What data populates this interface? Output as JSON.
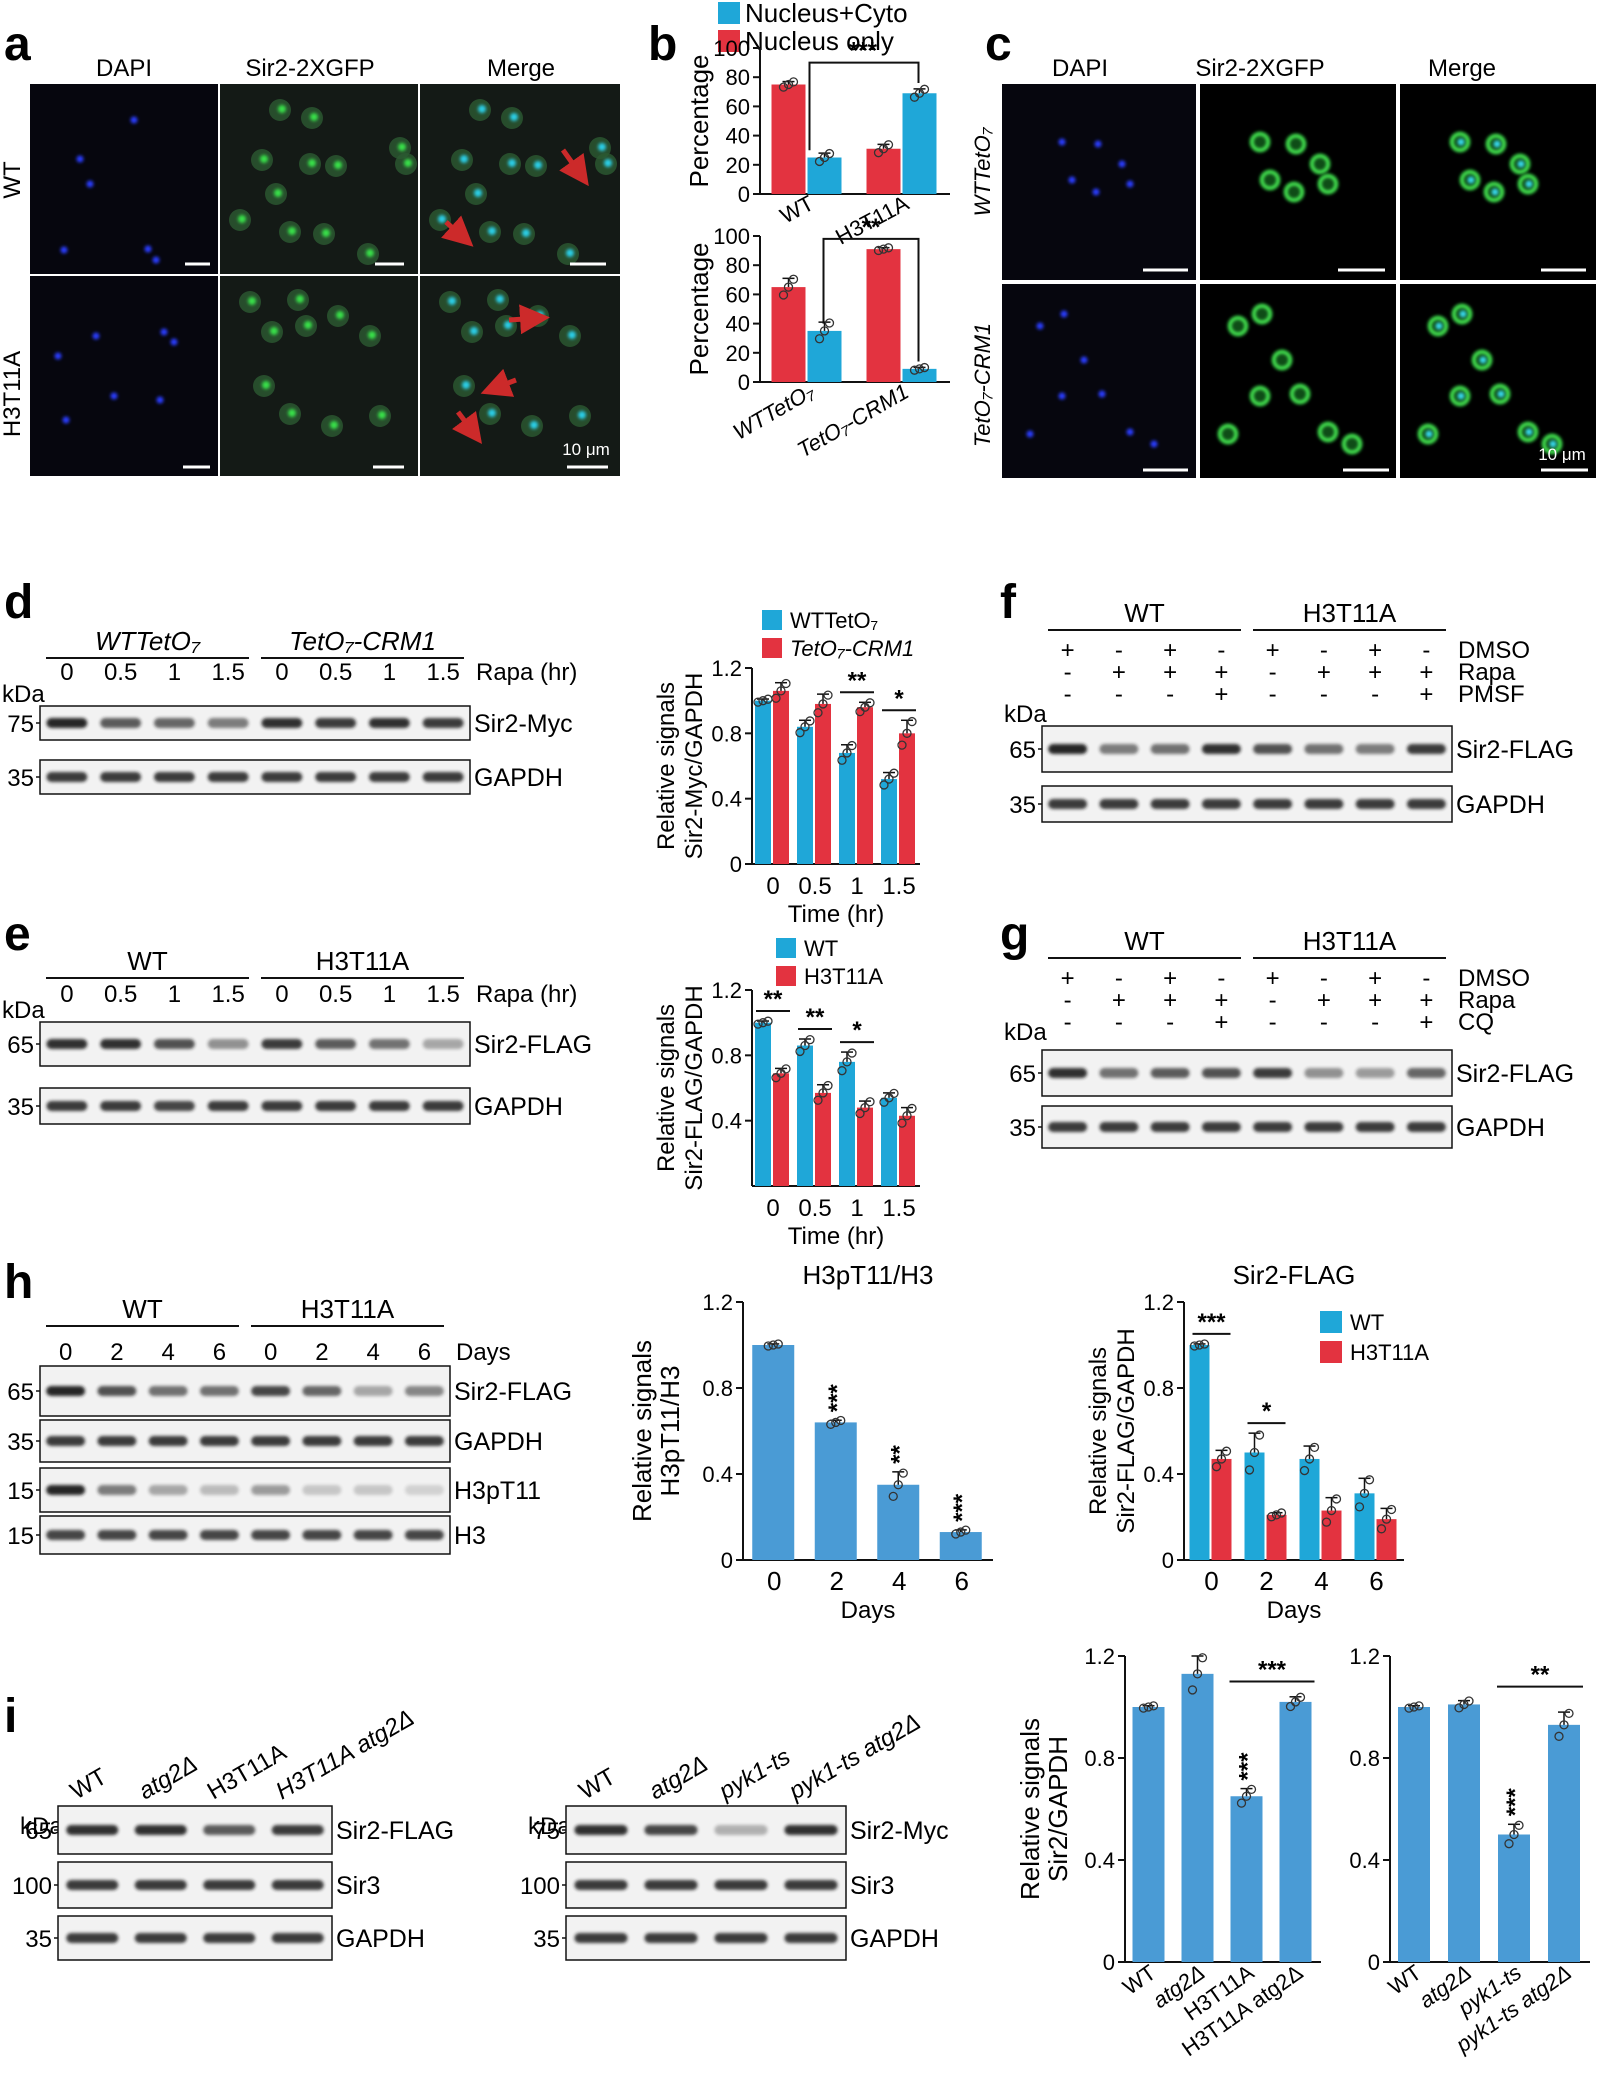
{
  "colors": {
    "blue": "#1fa7d8",
    "red": "#e33340",
    "lightblue": "#4a9bd5",
    "arrow": "#cc2a2a",
    "blot_bg": "#f2f2f2",
    "band": "#1a1a1a"
  },
  "panels": {
    "a": {
      "letter": "a",
      "cols": [
        "DAPI",
        "Sir2-2XGFP",
        "Merge"
      ],
      "rows": [
        "WT",
        "H3T11A"
      ],
      "scale": "10 μm"
    },
    "c": {
      "letter": "c",
      "cols": [
        "DAPI",
        "Sir2-2XGFP",
        "Merge"
      ],
      "rows": [
        "WTTetO₇",
        "TetO₇-CRM1"
      ],
      "scale": "10 μm"
    },
    "b": {
      "letter": "b"
    },
    "d": {
      "letter": "d",
      "groups": [
        "WTTetO₇",
        "TetO₇-CRM1"
      ],
      "lanes": [
        "0",
        "0.5",
        "1",
        "1.5",
        "0",
        "0.5",
        "1",
        "1.5"
      ],
      "lane_title": "Rapa (hr)",
      "kda_label": "kDa",
      "strips": [
        {
          "kda": "75",
          "label": "Sir2-Myc"
        },
        {
          "kda": "35",
          "label": "GAPDH"
        }
      ]
    },
    "e": {
      "letter": "e",
      "groups": [
        "WT",
        "H3T11A"
      ],
      "lanes": [
        "0",
        "0.5",
        "1",
        "1.5",
        "0",
        "0.5",
        "1",
        "1.5"
      ],
      "lane_title": "Rapa (hr)",
      "kda_label": "kDa",
      "strips": [
        {
          "kda": "65",
          "label": "Sir2-FLAG"
        },
        {
          "kda": "35",
          "label": "GAPDH"
        }
      ]
    },
    "f": {
      "letter": "f",
      "groups": [
        "WT",
        "H3T11A"
      ],
      "treatments": [
        {
          "name": "DMSO",
          "signs": [
            "+",
            "-",
            "+",
            "-",
            "+",
            "-",
            "+",
            "-"
          ]
        },
        {
          "name": "Rapa",
          "signs": [
            "-",
            "+",
            "+",
            "+",
            "-",
            "+",
            "+",
            "+"
          ]
        },
        {
          "name": "PMSF",
          "signs": [
            "-",
            "-",
            "-",
            "+",
            "-",
            "-",
            "-",
            "+"
          ]
        }
      ],
      "kda_label": "kDa",
      "strips": [
        {
          "kda": "65",
          "label": "Sir2-FLAG"
        },
        {
          "kda": "35",
          "label": "GAPDH"
        }
      ]
    },
    "g": {
      "letter": "g",
      "groups": [
        "WT",
        "H3T11A"
      ],
      "treatments": [
        {
          "name": "DMSO",
          "signs": [
            "+",
            "-",
            "+",
            "-",
            "+",
            "-",
            "+",
            "-"
          ]
        },
        {
          "name": "Rapa",
          "signs": [
            "-",
            "+",
            "+",
            "+",
            "-",
            "+",
            "+",
            "+"
          ]
        },
        {
          "name": "CQ",
          "signs": [
            "-",
            "-",
            "-",
            "+",
            "-",
            "-",
            "-",
            "+"
          ]
        }
      ],
      "kda_label": "kDa",
      "strips": [
        {
          "kda": "65",
          "label": "Sir2-FLAG"
        },
        {
          "kda": "35",
          "label": "GAPDH"
        }
      ]
    },
    "h": {
      "letter": "h",
      "groups": [
        "WT",
        "H3T11A"
      ],
      "lanes": [
        "0",
        "2",
        "4",
        "6",
        "0",
        "2",
        "4",
        "6"
      ],
      "lane_title": "Days",
      "strips": [
        {
          "kda": "65",
          "label": "Sir2-FLAG"
        },
        {
          "kda": "35",
          "label": "GAPDH"
        },
        {
          "kda": "15",
          "label": "H3pT11"
        },
        {
          "kda": "15",
          "label": "H3"
        }
      ]
    },
    "i": {
      "letter": "i",
      "blot1": {
        "lanes": [
          "WT",
          "atg2Δ",
          "H3T11A",
          "H3T11A atg2Δ"
        ],
        "kda_label": "kDa",
        "strips": [
          {
            "kda": "65",
            "label": "Sir2-FLAG"
          },
          {
            "kda": "100",
            "label": "Sir3"
          },
          {
            "kda": "35",
            "label": "GAPDH"
          }
        ]
      },
      "blot2": {
        "lanes": [
          "WT",
          "atg2Δ",
          "pyk1-ts",
          "pyk1-ts atg2Δ"
        ],
        "kda_label": "kDa",
        "strips": [
          {
            "kda": "75",
            "label": "Sir2-Myc"
          },
          {
            "kda": "100",
            "label": "Sir3"
          },
          {
            "kda": "35",
            "label": "GAPDH"
          }
        ]
      }
    }
  },
  "chart_data": [
    {
      "panel": "b-top",
      "type": "bar",
      "categories": [
        "WT",
        "H3T11A"
      ],
      "ylabel": "Percentage",
      "ylim": [
        0,
        100
      ],
      "yticks": [
        "0",
        "20",
        "40",
        "60",
        "80",
        "100"
      ],
      "series": [
        {
          "name": "Nucleus+Cyto",
          "values": [
            25,
            69
          ]
        },
        {
          "name": "Nucleus only",
          "values": [
            75,
            31
          ]
        }
      ],
      "errors": [
        [
          3,
          3
        ],
        [
          2,
          3
        ]
      ],
      "significance": [
        "***"
      ]
    },
    {
      "panel": "b-bottom",
      "type": "bar",
      "categories": [
        "WTTetO₇",
        "TetO₇-CRM1"
      ],
      "ylabel": "Percentage",
      "ylim": [
        0,
        100
      ],
      "yticks": [
        "0",
        "20",
        "40",
        "60",
        "80",
        "100"
      ],
      "series": [
        {
          "name": "Nucleus only",
          "values": [
            65,
            91
          ]
        },
        {
          "name": "Nucleus+Cyto",
          "values": [
            35,
            9
          ]
        }
      ],
      "errors": [
        [
          6,
          1
        ],
        [
          6,
          1
        ]
      ],
      "significance": [
        "**"
      ]
    },
    {
      "panel": "d",
      "type": "bar",
      "categories": [
        "0",
        "0.5",
        "1",
        "1.5"
      ],
      "xlabel": "Time (hr)",
      "ylabel": "Relative signals Sir2-Myc/GAPDH",
      "ylim": [
        0,
        1.2
      ],
      "yticks": [
        "0",
        "0.4",
        "0.8",
        "1.2"
      ],
      "series": [
        {
          "name": "WTTetO₇",
          "values": [
            1.0,
            0.84,
            0.68,
            0.52
          ]
        },
        {
          "name": "TetO₇-CRM1",
          "values": [
            1.06,
            0.98,
            0.96,
            0.8
          ]
        }
      ],
      "errors": [
        [
          0.01,
          0.04,
          0.05,
          0.04
        ],
        [
          0.05,
          0.06,
          0.03,
          0.08
        ]
      ],
      "significance": [
        "",
        "",
        "**",
        "*"
      ]
    },
    {
      "panel": "e",
      "type": "bar",
      "categories": [
        "0",
        "0.5",
        "1",
        "1.5"
      ],
      "xlabel": "Time (hr)",
      "ylabel": "Relative signals Sir2-FLAG/GAPDH",
      "ylim": [
        0,
        1.2
      ],
      "yticks": [
        "0.4",
        "0.8",
        "1.2"
      ],
      "series": [
        {
          "name": "WT",
          "values": [
            1.0,
            0.86,
            0.76,
            0.54
          ]
        },
        {
          "name": "H3T11A",
          "values": [
            0.69,
            0.57,
            0.48,
            0.43
          ]
        }
      ],
      "errors": [
        [
          0.01,
          0.04,
          0.06,
          0.03
        ],
        [
          0.03,
          0.05,
          0.04,
          0.05
        ]
      ],
      "significance": [
        "**",
        "**",
        "*",
        ""
      ]
    },
    {
      "panel": "h-mid",
      "type": "bar",
      "title": "H3pT11/H3",
      "categories": [
        "0",
        "2",
        "4",
        "6"
      ],
      "xlabel": "Days",
      "ylabel": "Relative signals H3pT11/H3",
      "ylim": [
        0,
        1.2
      ],
      "yticks": [
        "0",
        "0.4",
        "0.8",
        "1.2"
      ],
      "series": [
        {
          "values": [
            1.0,
            0.64,
            0.35,
            0.13
          ]
        }
      ],
      "errors": [
        [
          0.005,
          0.01,
          0.06,
          0.01
        ]
      ],
      "significance": [
        "",
        "***",
        "**",
        "***"
      ]
    },
    {
      "panel": "h-right",
      "type": "bar",
      "title": "Sir2-FLAG",
      "categories": [
        "0",
        "2",
        "4",
        "6"
      ],
      "xlabel": "Days",
      "ylabel": "Relative signals Sir2-FLAG/GAPDH",
      "ylim": [
        0,
        1.2
      ],
      "yticks": [
        "0",
        "0.4",
        "0.8",
        "1.2"
      ],
      "series": [
        {
          "name": "WT",
          "values": [
            1.0,
            0.5,
            0.47,
            0.31
          ]
        },
        {
          "name": "H3T11A",
          "values": [
            0.47,
            0.21,
            0.23,
            0.19
          ]
        }
      ],
      "errors": [
        [
          0.005,
          0.09,
          0.06,
          0.07
        ],
        [
          0.04,
          0.01,
          0.06,
          0.05
        ]
      ],
      "significance": [
        "***",
        "*",
        "",
        ""
      ]
    },
    {
      "panel": "i-left",
      "type": "bar",
      "categories": [
        "WT",
        "atg2Δ",
        "H3T11A",
        "H3T11A atg2Δ"
      ],
      "ylabel": "Relative signals Sir2/GAPDH",
      "ylim": [
        0,
        1.2
      ],
      "yticks": [
        "0",
        "0.4",
        "0.8",
        "1.2"
      ],
      "series": [
        {
          "values": [
            1.0,
            1.13,
            0.65,
            1.02
          ]
        }
      ],
      "errors": [
        [
          0.005,
          0.07,
          0.03,
          0.02
        ]
      ],
      "significance": [
        "",
        "",
        "***",
        ""
      ],
      "bracket": "***"
    },
    {
      "panel": "i-right",
      "type": "bar",
      "categories": [
        "WT",
        "atg2Δ",
        "pyk1-ts",
        "pyk1-ts atg2Δ"
      ],
      "ylim": [
        0,
        1.2
      ],
      "yticks": [
        "0",
        "0.4",
        "0.8",
        "1.2"
      ],
      "series": [
        {
          "values": [
            1.0,
            1.01,
            0.5,
            0.93
          ]
        }
      ],
      "errors": [
        [
          0.005,
          0.015,
          0.04,
          0.05
        ]
      ],
      "significance": [
        "",
        "",
        "***",
        ""
      ],
      "bracket": "**"
    }
  ]
}
